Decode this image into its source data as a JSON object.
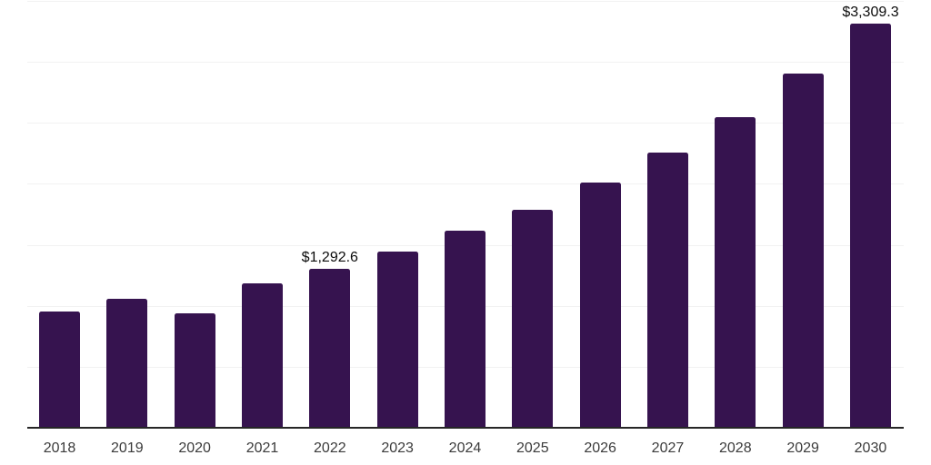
{
  "chart_data": {
    "type": "bar",
    "title": "",
    "xlabel": "",
    "ylabel": "",
    "categories": [
      "2018",
      "2019",
      "2020",
      "2021",
      "2022",
      "2023",
      "2024",
      "2025",
      "2026",
      "2027",
      "2028",
      "2029",
      "2030"
    ],
    "values": [
      944,
      1048,
      934,
      1174,
      1292.6,
      1440,
      1605,
      1781,
      2001,
      2249,
      2541,
      2898,
      3309.3
    ],
    "data_labels": {
      "2022": "$1,292.6",
      "2030": "$3,309.3"
    },
    "ylim": [
      0,
      3500
    ],
    "gridline_interval": 500,
    "grid_visible": true,
    "y_tick_labels_visible": false,
    "legend": "none",
    "colors": {
      "bar": "#36134F",
      "grid": "#F2F2F2",
      "axis_line": "#262626",
      "data_label": "#0B0B0B",
      "tick_label": "#3B3B3B",
      "background": "#FFFFFF"
    }
  }
}
